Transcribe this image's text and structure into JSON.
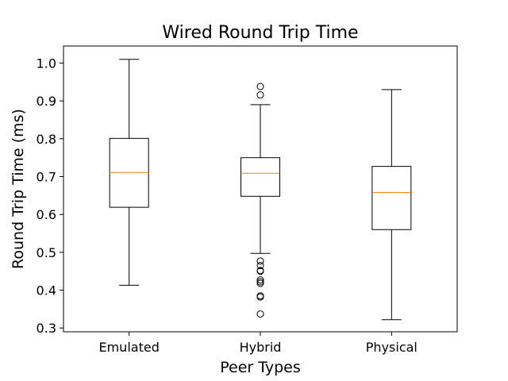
{
  "chart_data": {
    "type": "box",
    "title": "Wired Round Trip Time",
    "xlabel": "Peer Types",
    "ylabel": "Round Trip Time (ms)",
    "ylim": [
      0.29,
      1.045
    ],
    "yticks": [
      0.3,
      0.4,
      0.5,
      0.6,
      0.7,
      0.8,
      0.9,
      1.0
    ],
    "ytick_labels": [
      "0.3",
      "0.4",
      "0.5",
      "0.6",
      "0.7",
      "0.8",
      "0.9",
      "1.0"
    ],
    "grid": false,
    "colors": {
      "box": "#000000",
      "median": "#ff7f0e"
    },
    "categories": [
      "Emulated",
      "Hybrid",
      "Physical"
    ],
    "series": [
      {
        "whisker_low": 0.413,
        "q1": 0.619,
        "median": 0.711,
        "q3": 0.801,
        "whisker_high": 1.01,
        "outliers": []
      },
      {
        "whisker_low": 0.497,
        "q1": 0.648,
        "median": 0.709,
        "q3": 0.75,
        "whisker_high": 0.89,
        "outliers": [
          0.938,
          0.916,
          0.477,
          0.465,
          0.452,
          0.45,
          0.427,
          0.422,
          0.418,
          0.385,
          0.382,
          0.337
        ]
      },
      {
        "whisker_low": 0.322,
        "q1": 0.56,
        "median": 0.658,
        "q3": 0.727,
        "whisker_high": 0.93,
        "outliers": []
      }
    ]
  }
}
